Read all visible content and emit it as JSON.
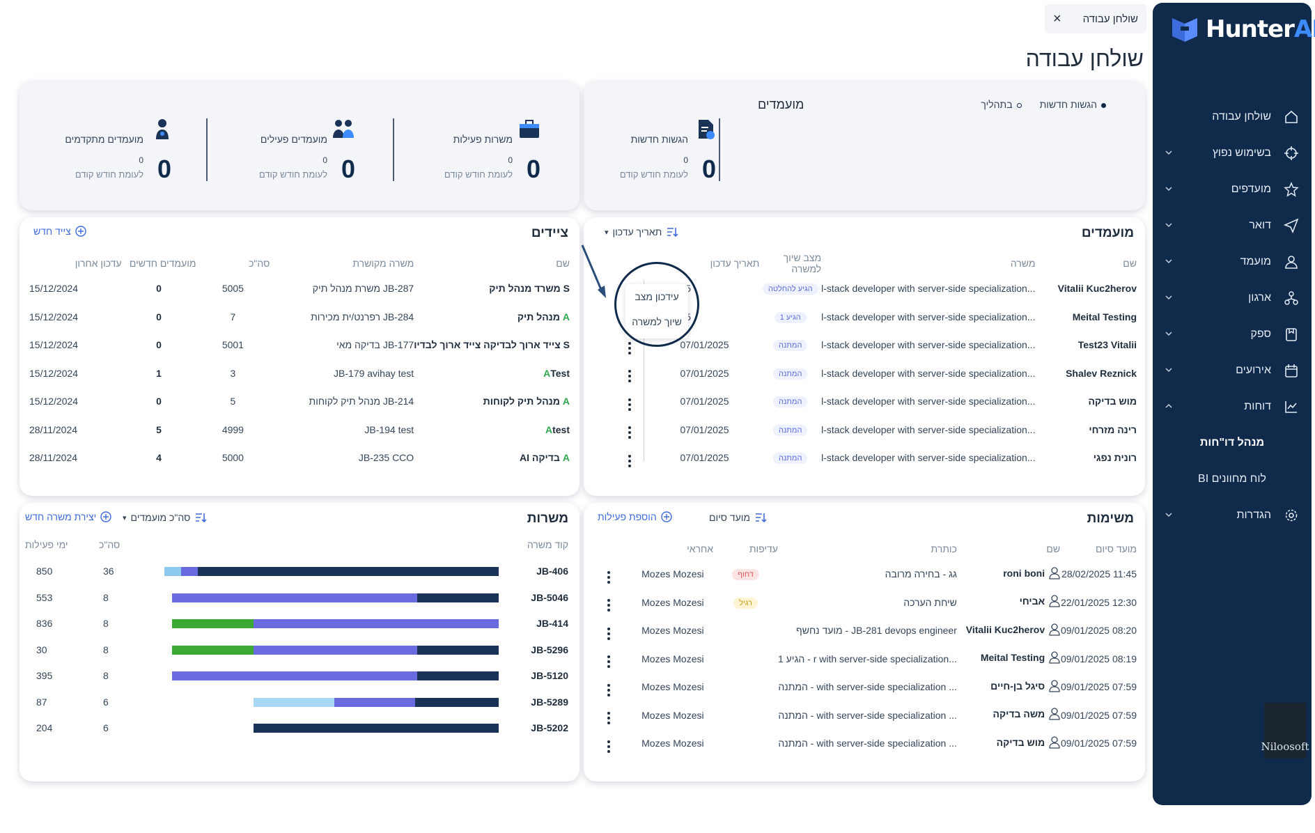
{
  "app": {
    "brand_prefix": "Hunter",
    "brand_suffix": "AI",
    "partner_logo": "Niloosoft"
  },
  "top_tab": {
    "label": "שולחן עבודה",
    "close": "×"
  },
  "page_title": "שולחן עבודה",
  "sidebar": {
    "items": [
      {
        "label": "שולחן עבודה",
        "icon": "home-icon"
      },
      {
        "label": "בשימוש נפוץ",
        "icon": "crosshair-icon"
      },
      {
        "label": "מועדפים",
        "icon": "star-icon"
      },
      {
        "label": "דואר",
        "icon": "send-icon"
      },
      {
        "label": "מועמד",
        "icon": "person-icon"
      },
      {
        "label": "ארגון",
        "icon": "org-icon"
      },
      {
        "label": "ספק",
        "icon": "supplier-icon"
      },
      {
        "label": "אירועים",
        "icon": "calendar-icon"
      },
      {
        "label": "דוחות",
        "icon": "chart-icon"
      }
    ],
    "sub_items": [
      "מנהל דו\"חות",
      "לוח מחוונים BI"
    ],
    "settings": "הגדרות"
  },
  "stats_candidates": {
    "title": "מועמדים",
    "legend": [
      {
        "label": "הגשות חדשות",
        "color": "#0f2a4a"
      },
      {
        "label": "בתהליך",
        "color": "#ffffff"
      }
    ],
    "new_submissions": {
      "label": "הגשות חדשות",
      "value": "0",
      "prev": "0",
      "prev_label": "לעומת חודש קודם"
    }
  },
  "stats_main": [
    {
      "label": "משרות פעילות",
      "value": "0",
      "prev": "0",
      "prev_label": "לעומת חודש קודם"
    },
    {
      "label": "מועמדים פעילים",
      "value": "0",
      "prev": "0",
      "prev_label": "לעומת חודש קודם"
    },
    {
      "label": "מועמדים מתקדמים",
      "value": "0",
      "prev": "0",
      "prev_label": "לעומת חודש קודם"
    }
  ],
  "candidates_table": {
    "title": "מועמדים",
    "sort_label": "תאריך עדכון",
    "headers": [
      "שם",
      "משרה",
      "מצב שיוך למשרה",
      "תאריך עדכון"
    ],
    "rows": [
      {
        "name": "Vitalii Kuc2herov",
        "job": "...l-stack developer with server-side specialization",
        "status": "הגיע להחלטה",
        "date": "25"
      },
      {
        "name": "Meital Testing",
        "job": "...l-stack developer with server-side specialization",
        "status": "הגיע 1",
        "date": "25"
      },
      {
        "name": "Test23 Vitalii",
        "job": "...l-stack developer with server-side specialization",
        "status": "המתנה",
        "date": "07/01/2025"
      },
      {
        "name": "Shalev Reznick",
        "job": "...l-stack developer with server-side specialization",
        "status": "המתנה",
        "date": "07/01/2025"
      },
      {
        "name": "מוש בדיקה",
        "job": "...l-stack developer with server-side specialization",
        "status": "המתנה",
        "date": "07/01/2025"
      },
      {
        "name": "רינה מזרחי",
        "job": "...l-stack developer with server-side specialization",
        "status": "המתנה",
        "date": "07/01/2025"
      },
      {
        "name": "רונית נפגי",
        "job": "...l-stack developer with server-side specialization",
        "status": "המתנה",
        "date": "07/01/2025"
      }
    ],
    "popup": [
      "עידכון מצב",
      "שיוך למשרה"
    ]
  },
  "tags_table": {
    "title": "ציידים",
    "add_label": "צייד חדש",
    "headers": [
      "שם",
      "משרה מקושרת",
      "סה\"כ",
      "מועמדים חדשים",
      "עדכון אחרון"
    ],
    "rows": [
      {
        "prefix": "S",
        "name": "משרד מנהל תיק",
        "job": "JB-287 משרת מנהל תיק",
        "total": "5005",
        "new": "0",
        "date": "15/12/2024"
      },
      {
        "prefix": "A",
        "name": "מנהל תיק",
        "job": "JB-284 רפרנט/ית מכירות",
        "total": "7",
        "new": "0",
        "date": "15/12/2024"
      },
      {
        "prefix": "S",
        "name": "צייד ארוך לבדיקה צייד ארוך לבדיו",
        "job": "JB-177 בדיקה מאי",
        "total": "5001",
        "new": "0",
        "date": "15/12/2024"
      },
      {
        "prefix": "A",
        "name": "Test",
        "job": "JB-179 avihay test",
        "total": "3",
        "new": "1",
        "date": "15/12/2024"
      },
      {
        "prefix": "A",
        "name": "מנהל תיק לקוחות",
        "job": "JB-214 מנהל תיק לקוחות",
        "total": "5",
        "new": "0",
        "date": "15/12/2024"
      },
      {
        "prefix": "A",
        "name": "test",
        "job": "JB-194 test",
        "total": "4999",
        "new": "5",
        "date": "28/11/2024"
      },
      {
        "prefix": "A",
        "name": "בדיקה AI",
        "job": "JB-235 CCO",
        "total": "5000",
        "new": "4",
        "date": "28/11/2024"
      }
    ]
  },
  "tasks_table": {
    "title": "משימות",
    "sort_label": "מועד סיום",
    "add_label": "הוספת פעילות",
    "headers": [
      "מועד סיום",
      "שם",
      "כותרת",
      "עדיפות",
      "אחראי"
    ],
    "rows": [
      {
        "due": "11:45 28/02/2025",
        "name": "roni boni",
        "title": "גג - בחירה מרובה",
        "priority": "דחוף",
        "owner": "Mozes Mozesi"
      },
      {
        "due": "12:30 22/01/2025",
        "name": "אביחי",
        "title": "שיחת הערכה",
        "priority": "רגיל",
        "owner": "Mozes Mozesi"
      },
      {
        "due": "08:20 09/01/2025",
        "name": "Vitalii Kuc2herov",
        "title": "JB-281 devops engineer - מועד נחשף",
        "priority": "",
        "owner": "Mozes Mozesi"
      },
      {
        "due": "08:19 09/01/2025",
        "name": "Meital Testing",
        "title": "...r with server-side specialization - הגיע 1",
        "priority": "",
        "owner": "Mozes Mozesi"
      },
      {
        "due": "07:59 09/01/2025",
        "name": "סיגל בן-חיים",
        "title": "... with server-side specialization - המתנה",
        "priority": "",
        "owner": "Mozes Mozesi"
      },
      {
        "due": "07:59 09/01/2025",
        "name": "משה בדיקה",
        "title": "... with server-side specialization - המתנה",
        "priority": "",
        "owner": "Mozes Mozesi"
      },
      {
        "due": "07:59 09/01/2025",
        "name": "מוש בדיקה",
        "title": "... with server-side specialization - המתנה",
        "priority": "",
        "owner": "Mozes Mozesi"
      }
    ]
  },
  "jobs_table": {
    "title": "משרות",
    "sort_label": "סה\"כ מועמדים",
    "add_label": "יצירת משרה חדש",
    "headers": [
      "קוד משרה",
      "סה\"כ",
      "ימי פעילות"
    ],
    "rows": [
      {
        "code": "JB-406",
        "total": "36",
        "days": "850",
        "segments": [
          {
            "v": 5,
            "c": "#8ec9f0"
          },
          {
            "v": 5,
            "c": "#6b6be0"
          },
          {
            "v": 90,
            "c": "#1c3358"
          }
        ]
      },
      {
        "code": "JB-5046",
        "total": "8",
        "days": "553",
        "segments": [
          {
            "v": 75,
            "c": "#6b6be0"
          },
          {
            "v": 25,
            "c": "#1c3358"
          }
        ]
      },
      {
        "code": "JB-414",
        "total": "8",
        "days": "836",
        "segments": [
          {
            "v": 25,
            "c": "#3aaa35"
          },
          {
            "v": 75,
            "c": "#6b6be0"
          }
        ]
      },
      {
        "code": "JB-5296",
        "total": "8",
        "days": "30",
        "segments": [
          {
            "v": 25,
            "c": "#3aaa35"
          },
          {
            "v": 50,
            "c": "#6b6be0"
          },
          {
            "v": 25,
            "c": "#1c3358"
          }
        ]
      },
      {
        "code": "JB-5120",
        "total": "8",
        "days": "395",
        "segments": [
          {
            "v": 75,
            "c": "#6b6be0"
          },
          {
            "v": 25,
            "c": "#1c3358"
          }
        ]
      },
      {
        "code": "JB-5289",
        "total": "6",
        "days": "87",
        "segments": [
          {
            "v": 33,
            "c": "#a9d8f5"
          },
          {
            "v": 33,
            "c": "#6b6be0"
          },
          {
            "v": 34,
            "c": "#1c3358"
          }
        ]
      },
      {
        "code": "JB-5202",
        "total": "6",
        "days": "204",
        "segments": [
          {
            "v": 100,
            "c": "#1c3358"
          }
        ]
      }
    ]
  }
}
